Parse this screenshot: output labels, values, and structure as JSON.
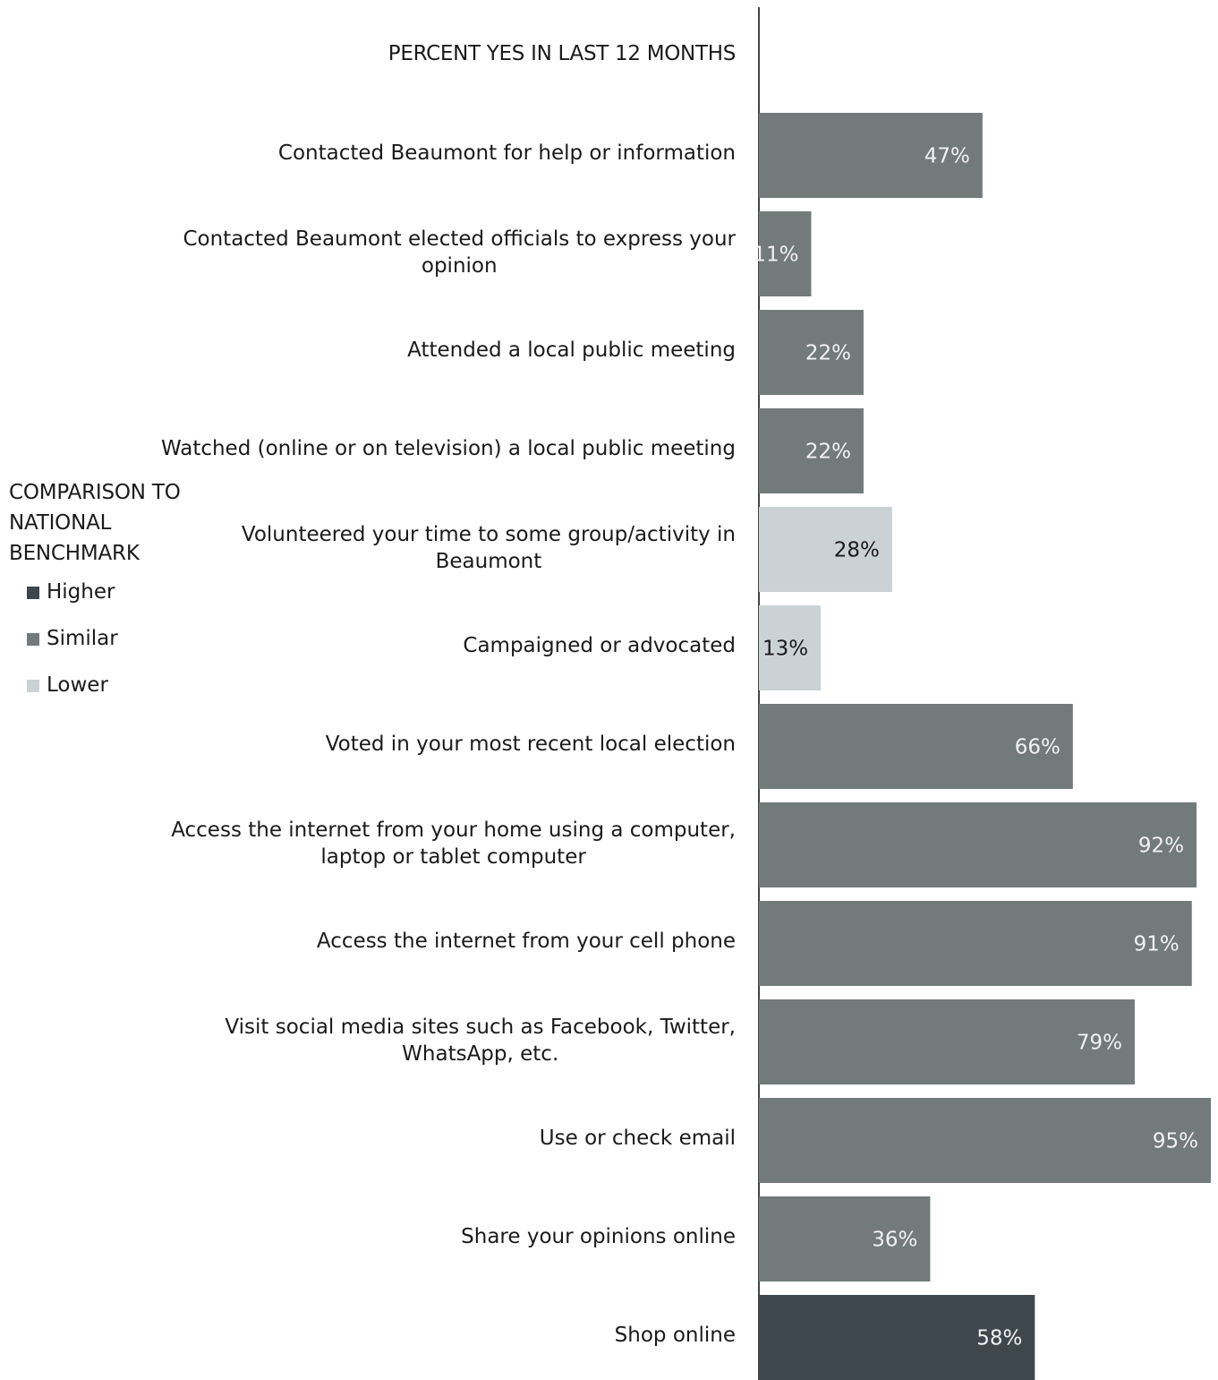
{
  "chart_data": {
    "type": "bar",
    "orientation": "horizontal",
    "title": "PERCENT YES IN LAST 12 MONTHS",
    "categories": [
      [
        "Contacted Beaumont for help or information"
      ],
      [
        "Contacted Beaumont elected officials to express your",
        "opinion"
      ],
      [
        "Attended a local public meeting"
      ],
      [
        "Watched (online or on television) a local public meeting"
      ],
      [
        "Volunteered your time to some group/activity in",
        "Beaumont"
      ],
      [
        "Campaigned or advocated"
      ],
      [
        "Voted in your most recent local election"
      ],
      [
        "Access the internet from your home using a computer,",
        "laptop or tablet computer"
      ],
      [
        "Access the internet from your cell phone"
      ],
      [
        "Visit social media sites such as Facebook, Twitter,",
        "WhatsApp, etc."
      ],
      [
        "Use or check email"
      ],
      [
        "Share your opinions online"
      ],
      [
        "Shop online"
      ]
    ],
    "values": [
      47,
      11,
      22,
      22,
      28,
      13,
      66,
      92,
      91,
      79,
      95,
      36,
      58
    ],
    "value_labels": [
      "47%",
      "11%",
      "22%",
      "22%",
      "28%",
      "13%",
      "66%",
      "92%",
      "91%",
      "79%",
      "95%",
      "36%",
      "58%"
    ],
    "comparison": [
      "Similar",
      "Similar",
      "Similar",
      "Similar",
      "Lower",
      "Lower",
      "Similar",
      "Similar",
      "Similar",
      "Similar",
      "Similar",
      "Similar",
      "Higher"
    ],
    "xlim": [
      0,
      95
    ],
    "legend": {
      "title": "COMPARISON TO NATIONAL BENCHMARK",
      "title_lines": [
        "COMPARISON TO",
        "NATIONAL",
        "BENCHMARK"
      ],
      "placement": "left",
      "items": [
        {
          "label": "Higher",
          "color": "#3d474d"
        },
        {
          "label": "Similar",
          "color": "#727a7a"
        },
        {
          "label": "Lower",
          "color": "#cbd2d6"
        }
      ]
    },
    "colors": {
      "Higher": "#3d474d",
      "Similar": "#727a7a",
      "Lower": "#cbd2d6"
    },
    "label_colors": {
      "Higher": "#f2f2f2",
      "Similar": "#f2f2f2",
      "Lower": "#1a1a1a"
    }
  }
}
